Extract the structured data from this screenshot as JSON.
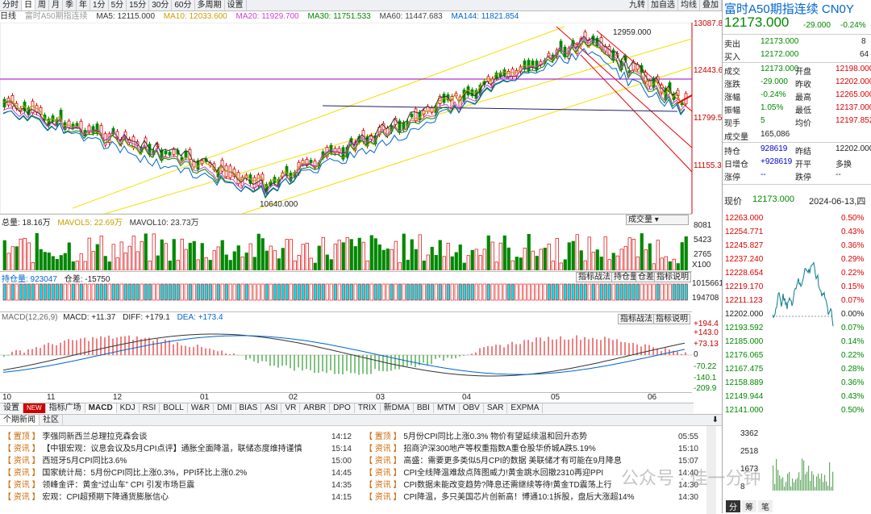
{
  "toolbar": {
    "tabs": [
      "分时",
      "日",
      "周",
      "月",
      "季",
      "年",
      "1分",
      "5分",
      "15分",
      "30分",
      "60分",
      "多周期",
      "设置"
    ],
    "right": [
      "九转",
      "加自选",
      "均线",
      "叠加"
    ]
  },
  "info": {
    "period": "日线",
    "name": "富时A50期指连续",
    "ma5": "MA5: 12115.000",
    "ma10": "MA10: 12033.600",
    "ma20": "MA20: 11929.700",
    "ma30": "MA30: 11751.533",
    "ma60": "MA60: 11447.683",
    "ma144": "MA144: 11821.854"
  },
  "price_axis": [
    "13087.83",
    "12443.66",
    "11799.50",
    "11155.33"
  ],
  "annotations": {
    "high": "12959.000",
    "low": "10640.000"
  },
  "volume": {
    "title": "总量: 18.16万",
    "mavol5": "MAVOL5: 22.69万",
    "mavol10": "MAVOL10: 23.73万",
    "select": "成交量",
    "axis": [
      "8081",
      "5423",
      "2765",
      "X100"
    ]
  },
  "oi": {
    "title": "持仓量: 923047",
    "diff": "仓差: -15750",
    "buttons": [
      "指标战法",
      "持仓量",
      "仓差",
      "指标说明"
    ],
    "axis": [
      "1015661",
      "194708"
    ]
  },
  "macd": {
    "title": "MACD(12,26,9)",
    "macd": "MACD: +11.37",
    "diffv": "DIFF: +179.1",
    "dea": "DEA: +173.4",
    "buttons": [
      "指标战法",
      "指标说明"
    ],
    "axis": [
      "+194.4",
      "+143.0",
      "+73.13",
      "0",
      "-70.22",
      "-140.1",
      "-209.9"
    ]
  },
  "months": [
    "10",
    "11",
    "12",
    "01",
    "02",
    "03",
    "04",
    "05",
    "06"
  ],
  "indicator_tabs": [
    "设置",
    "NEW",
    "指标广场",
    "MACD",
    "KDJ",
    "RSI",
    "BOLL",
    "W&R",
    "DMI",
    "BIAS",
    "ASI",
    "VR",
    "ARBR",
    "DPO",
    "TRIX",
    "新DMA",
    "BBI",
    "MTM",
    "OBV",
    "SAR",
    "EXPMA"
  ],
  "news_tabs": [
    "个期新闻",
    "社区"
  ],
  "news_left": [
    {
      "tag": "【 置顶 】",
      "title": "李强同新西兰总理拉克森会谈",
      "time": "14:12"
    },
    {
      "tag": "【 资讯 】",
      "title": "【中银宏观：议息会议及5月CPI点评】通胀全面降温，联储态度维持谨慎",
      "time": "15:14"
    },
    {
      "tag": "【 资讯 】",
      "title": "西班牙5月CPI同比3.6%",
      "time": "15:00"
    },
    {
      "tag": "【 资讯 】",
      "title": "国家统计局：5月份CPI同比上涨0.3%，PPI环比上涨0.2%",
      "time": "14:45"
    },
    {
      "tag": "【 资讯 】",
      "title": "领峰金评：黄金“过山车” CPI 引发市场巨震",
      "time": "14:35"
    },
    {
      "tag": "【 资讯 】",
      "title": "宏观：CPI超预期下降通货膨胀信心",
      "time": "14:15"
    }
  ],
  "news_right": [
    {
      "tag": "【 置顶 】",
      "title": "5月份CPI同比上涨0.3% 物价有望延续温和回升态势",
      "time": "05:55"
    },
    {
      "tag": "【 资讯 】",
      "title": "招商沪深300地产等权重指数A重仓股华侨城A跌5.19%",
      "time": "15:10"
    },
    {
      "tag": "【 资讯 】",
      "title": "高盛：需要更多类似5月CPI的数据 美联储才有可能在9月降息",
      "time": "15:07"
    },
    {
      "tag": "【 资讯 】",
      "title": "CPI全线降温难敌点阵图威力!黄金跳水回撤2310再迎PPI",
      "time": "14:40"
    },
    {
      "tag": "【 资讯 】",
      "title": "CPI数据未能改变趋势?降息还需继续等待!黄金TD震荡上行",
      "time": "14:30"
    },
    {
      "tag": "【 资讯 】",
      "title": "CPI降温，多只美国芯片创新高！博通10:1拆股，盘后大涨超14%",
      "time": "14:30"
    }
  ],
  "quote": {
    "title": "富时A50期指连续",
    "code": "CN0Y",
    "price": "12173.000",
    "change": "-29.000",
    "pct": "-0.24%",
    "sell_label": "卖出",
    "sell": "12173.000",
    "sell_vol": "8",
    "buy_label": "买入",
    "buy": "12172.000",
    "buy_vol": "64",
    "rows": [
      [
        "成交",
        "12173.000",
        "开盘",
        "12198.000"
      ],
      [
        "涨跌",
        "-29.000",
        "昨收",
        "12202.000"
      ],
      [
        "涨幅",
        "-0.24%",
        "最高",
        "12265.000"
      ],
      [
        "振幅",
        "1.05%",
        "最低",
        "12137.000"
      ],
      [
        "现手",
        "5",
        "均价",
        "12197.852"
      ]
    ],
    "vol_label": "成交量",
    "vol": "165,086",
    "oi_rows": [
      [
        "持仓",
        "928619",
        "昨结",
        "12202.000"
      ],
      [
        "日增仓",
        "+928619",
        "开平",
        "多换"
      ],
      [
        "涨停",
        "--",
        "跌停",
        "--"
      ]
    ],
    "now_label": "现价",
    "now": "12173.000",
    "date": "2024-06-13,四"
  },
  "intraday": {
    "prices": [
      "12263.000",
      "12254.771",
      "12245.827",
      "12237.240",
      "12228.654",
      "12219.170",
      "12211.123",
      "12202.000",
      "12193.592",
      "12185.000",
      "12176.065",
      "12167.475",
      "12158.889",
      "12149.944",
      "12141.000"
    ],
    "pcts": [
      "0.50%",
      "0.43%",
      "0.36%",
      "0.29%",
      "0.22%",
      "0.15%",
      "0.07%",
      "0.00%",
      "0.07%",
      "0.14%",
      "0.22%",
      "0.28%",
      "0.36%",
      "0.43%",
      "0.50%"
    ],
    "vol_axis": [
      "3362",
      "2518",
      "1673",
      "8"
    ],
    "tabs": [
      "分",
      "筹",
      "笔"
    ]
  },
  "watermark": "公众号 · 佳一分钟"
}
